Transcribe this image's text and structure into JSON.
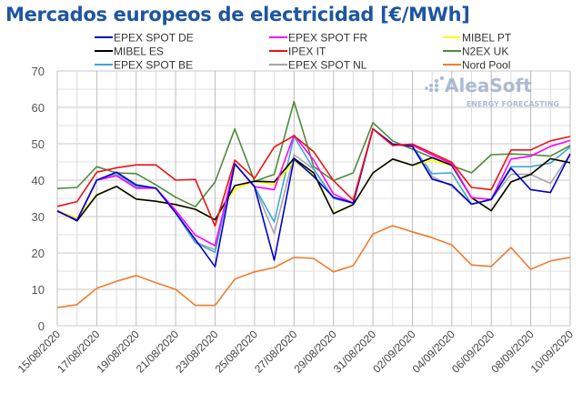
{
  "logo": {
    "name": "AleaSoft",
    "tagline": "ENERGY FORECASTING"
  },
  "chart_data": {
    "type": "line",
    "title": "Mercados europeos de electricidad [€/MWh]",
    "xlabel": "",
    "ylabel": "",
    "ylim": [
      0,
      70
    ],
    "yticks": [
      0,
      10,
      20,
      30,
      40,
      50,
      60,
      70
    ],
    "grid": true,
    "legend_position": "top",
    "x": [
      "15/08/2020",
      "16/08/2020",
      "17/08/2020",
      "18/08/2020",
      "19/08/2020",
      "20/08/2020",
      "21/08/2020",
      "22/08/2020",
      "23/08/2020",
      "24/08/2020",
      "25/08/2020",
      "26/08/2020",
      "27/08/2020",
      "28/08/2020",
      "29/08/2020",
      "30/08/2020",
      "31/08/2020",
      "01/09/2020",
      "02/09/2020",
      "03/09/2020",
      "04/09/2020",
      "05/09/2020",
      "06/09/2020",
      "07/09/2020",
      "08/09/2020",
      "09/09/2020",
      "10/09/2020"
    ],
    "xtick_labels": [
      "15/08/2020",
      "17/08/2020",
      "19/08/2020",
      "21/08/2020",
      "23/08/2020",
      "25/08/2020",
      "27/08/2020",
      "29/08/2020",
      "31/08/2020",
      "02/09/2020",
      "04/09/2020",
      "06/09/2020",
      "08/09/2020",
      "10/09/2020"
    ],
    "series": [
      {
        "name": "EPEX SPOT DE",
        "color": "#0000cc",
        "values": [
          31.5,
          29,
          40,
          42.2,
          38.7,
          37.8,
          31,
          23.7,
          16.2,
          44.5,
          38.2,
          18,
          45.8,
          41,
          35.3,
          33.7,
          54.1,
          49.9,
          49.3,
          40.3,
          38.7,
          33.4,
          34.7,
          43.3,
          37.4,
          36.6,
          47.2
        ]
      },
      {
        "name": "EPEX SPOT FR",
        "color": "#ff00ff",
        "values": [
          31.5,
          29,
          40,
          41.2,
          37.8,
          37.8,
          31.7,
          24.9,
          22,
          44.5,
          38.2,
          37.4,
          52.4,
          45.5,
          36.2,
          33.7,
          54.1,
          49.9,
          49.6,
          46.9,
          44.5,
          35.2,
          34.7,
          45.8,
          46.6,
          49.3,
          50.9
        ]
      },
      {
        "name": "MIBEL PT",
        "color": "#ffff00",
        "values": [
          31.5,
          29.7,
          36,
          38.3,
          34.8,
          34.2,
          33.2,
          32,
          29.1,
          37.5,
          39.7,
          38.8,
          45.2,
          41.5,
          31,
          33.3,
          42,
          45.8,
          44.1,
          45.3,
          44.1,
          35.2,
          31.6,
          39.5,
          41.6,
          45.9,
          44.8
        ]
      },
      {
        "name": "MIBEL ES",
        "color": "#000000",
        "values": [
          31.6,
          28.8,
          35.9,
          38.3,
          34.8,
          34.2,
          33.3,
          32,
          29.1,
          38.5,
          39.7,
          39.5,
          46,
          42,
          30.8,
          33.3,
          42,
          45.8,
          44.1,
          46.2,
          44.1,
          35.2,
          31.6,
          39.5,
          41.6,
          45.9,
          44.8
        ]
      },
      {
        "name": "IPEX IT",
        "color": "#ee1111",
        "values": [
          32.8,
          34.1,
          42.2,
          43.4,
          44.2,
          44.2,
          40,
          40.2,
          27.4,
          45.5,
          40.5,
          49.1,
          52.2,
          47.8,
          39.9,
          34.5,
          54.1,
          49.5,
          49.9,
          47.4,
          44.9,
          38,
          37.4,
          48.3,
          48.3,
          50.8,
          52
        ]
      },
      {
        "name": "N2EX UK",
        "color": "#4e8a3a",
        "values": [
          37.7,
          38,
          43.7,
          42,
          41.8,
          38.7,
          35.3,
          32.7,
          39.5,
          54.1,
          39.7,
          41.6,
          61.6,
          43.7,
          39.9,
          42,
          55.8,
          50.8,
          48.5,
          46.2,
          44,
          42,
          47,
          47.2,
          47,
          46.6,
          49.5
        ]
      },
      {
        "name": "EPEX SPOT BE",
        "color": "#3fa7d6",
        "values": [
          31.5,
          29,
          40,
          42,
          38.3,
          37.8,
          31,
          22.8,
          20.2,
          44.5,
          38.2,
          28.5,
          52,
          43,
          35,
          33.7,
          54.1,
          49.9,
          49.3,
          41.8,
          42,
          33.4,
          34.7,
          43.7,
          43.7,
          44.7,
          49.1
        ]
      },
      {
        "name": "EPEX SPOT NL",
        "color": "#a6a6a6",
        "values": [
          31.5,
          29,
          40,
          41.5,
          38,
          37.8,
          31,
          23,
          20.9,
          44.5,
          38.2,
          25.3,
          47,
          43,
          35,
          33.7,
          54.1,
          49.9,
          49.3,
          41,
          38.3,
          33.4,
          34.7,
          41.6,
          41.6,
          39.1,
          47.2
        ]
      },
      {
        "name": "Nord Pool",
        "color": "#ed7d31",
        "values": [
          5,
          5.8,
          10.3,
          12.2,
          13.8,
          11.8,
          10,
          5.6,
          5.6,
          12.8,
          14.8,
          16,
          18.8,
          18.5,
          14.8,
          16.5,
          25.2,
          27.5,
          25.8,
          24.2,
          22.2,
          16.7,
          16.3,
          21.5,
          15.5,
          17.8,
          18.8
        ]
      }
    ]
  }
}
